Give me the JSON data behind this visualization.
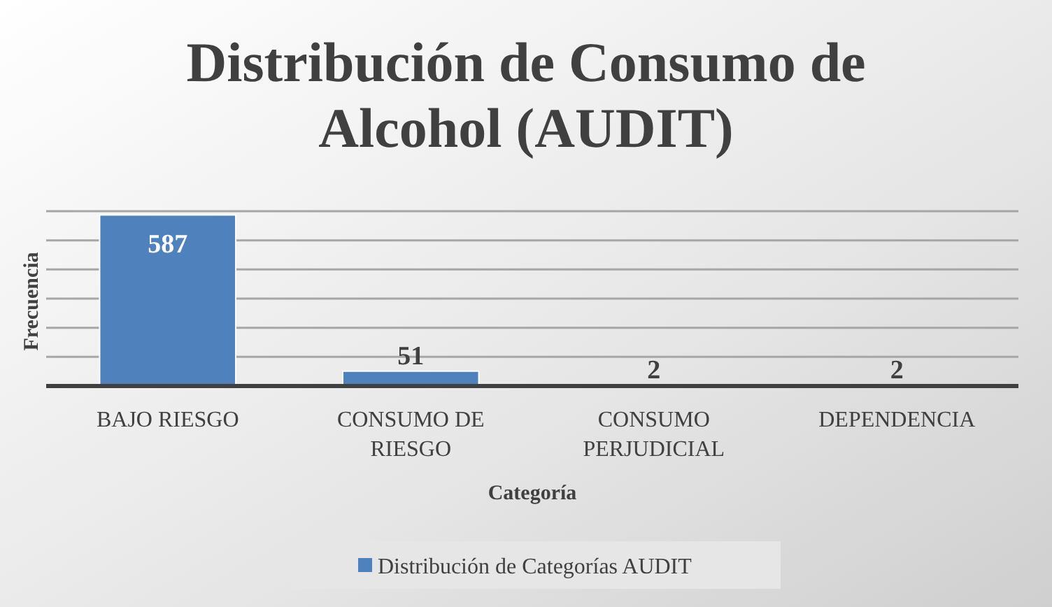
{
  "chart_data": {
    "type": "bar",
    "title": "Distribución de Consumo de Alcohol (AUDIT)",
    "xlabel": "Categoría",
    "ylabel": "Frecuencia",
    "categories": [
      "BAJO RIESGO",
      "CONSUMO DE RIESGO",
      "CONSUMO PERJUDICIAL",
      "DEPENDENCIA"
    ],
    "series": [
      {
        "name": "Distribución de Categorías AUDIT",
        "color": "#4f81bd",
        "values": [
          587,
          51,
          2,
          2
        ]
      }
    ],
    "ylim": [
      0,
      600
    ],
    "yticks": [
      {
        "value": 0,
        "label": null
      },
      {
        "value": 100,
        "label": null
      },
      {
        "value": 200,
        "label": null
      },
      {
        "value": 300,
        "label": null
      },
      {
        "value": 400,
        "label": null
      },
      {
        "value": 500,
        "label": null
      },
      {
        "value": 600,
        "label": null
      }
    ],
    "grid": "y",
    "legend": "bottom",
    "data_labels": true,
    "tick_labels": "x"
  }
}
